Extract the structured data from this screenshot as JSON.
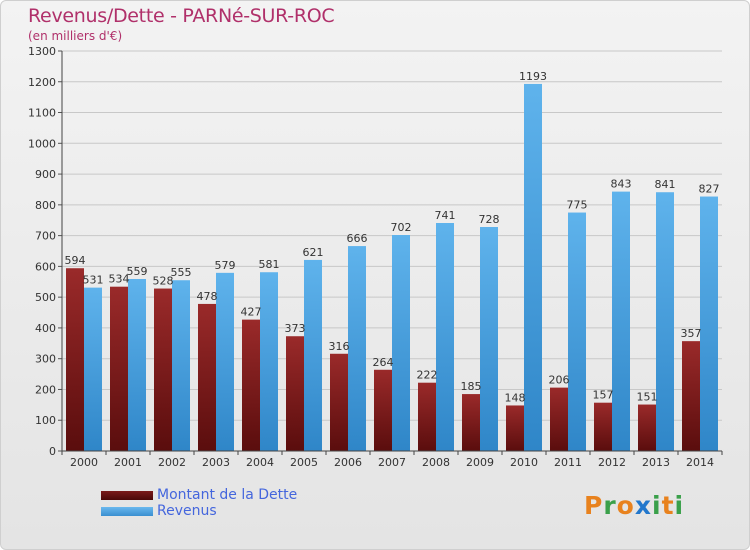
{
  "title": "Revenus/Dette - PARNé-SUR-ROC",
  "subtitle": "(en milliers d'€)",
  "colors": {
    "title": "#b0306a",
    "debt": "#7a1a1a",
    "revenue": "#4ea6e4",
    "legend_text": "#4466dd"
  },
  "legend": {
    "debt_label": "Montant de la Dette",
    "revenue_label": "Revenus"
  },
  "logo": {
    "text": "Proxiti",
    "letters": [
      "P",
      "r",
      "o",
      "x",
      "i",
      "t",
      "i"
    ],
    "letter_colors": [
      "#e8821e",
      "#3aa04a",
      "#e8821e",
      "#2277cc",
      "#3aa04a",
      "#e8821e",
      "#3aa04a"
    ]
  },
  "chart_data": {
    "type": "bar",
    "title": "Revenus/Dette - PARNé-SUR-ROC",
    "ylabel": "(en milliers d'€)",
    "xlabel": "",
    "ylim": [
      0,
      1300
    ],
    "yticks": [
      0,
      100,
      200,
      300,
      400,
      500,
      600,
      700,
      800,
      900,
      1000,
      1100,
      1200,
      1300
    ],
    "grid": true,
    "legend_position": "bottom-left",
    "categories": [
      "2000",
      "2001",
      "2002",
      "2003",
      "2004",
      "2005",
      "2006",
      "2007",
      "2008",
      "2009",
      "2010",
      "2011",
      "2012",
      "2013",
      "2014"
    ],
    "series": [
      {
        "name": "Montant de la Dette",
        "values": [
          594,
          534,
          528,
          478,
          427,
          373,
          316,
          264,
          222,
          185,
          148,
          206,
          157,
          151,
          357
        ]
      },
      {
        "name": "Revenus",
        "values": [
          531,
          559,
          555,
          579,
          581,
          621,
          666,
          702,
          741,
          728,
          1193,
          775,
          843,
          841,
          827
        ]
      }
    ]
  }
}
